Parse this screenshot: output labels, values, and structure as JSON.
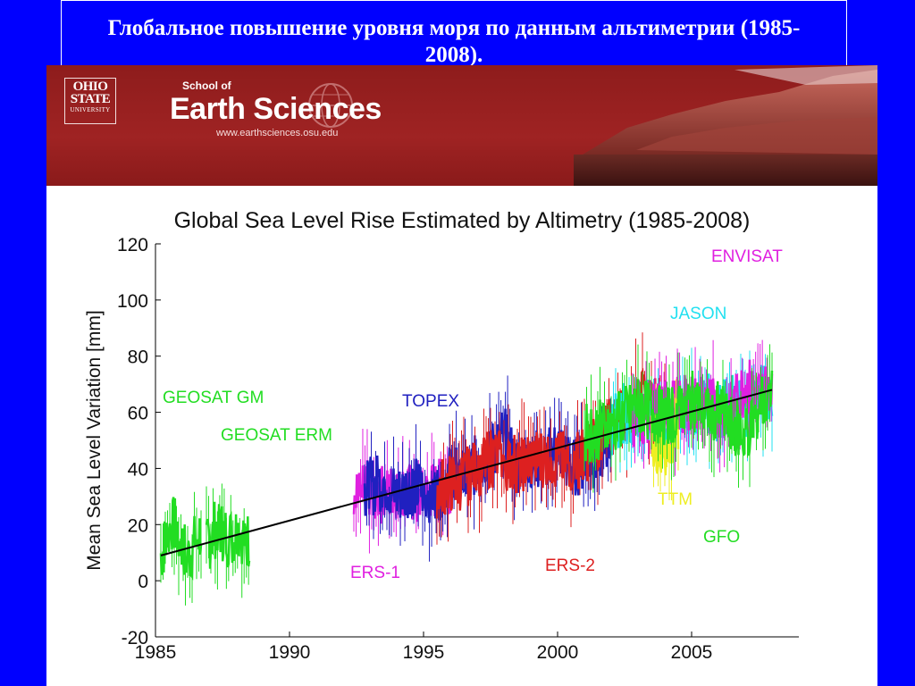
{
  "slide": {
    "title": "Глобальное повышение уровня моря по данным альтиметрии (1985-2008).",
    "background_color": "#0000ff"
  },
  "banner": {
    "logo_line1": "OHIO",
    "logo_line2": "STATE",
    "logo_line3": "UNIVERSITY",
    "school_of": "School of",
    "school_name": "Earth Sciences",
    "url": "www.earthsciences.osu.edu",
    "color": "#9a2020"
  },
  "chart_data": {
    "type": "line",
    "title": "Global Sea Level Rise Estimated by Altimetry (1985-2008)",
    "xlabel": "",
    "ylabel": "Mean Sea Level Variation [mm]",
    "xlim": [
      1985,
      2009
    ],
    "ylim": [
      -20,
      120
    ],
    "xticks": [
      1985,
      1990,
      1995,
      2000,
      2005
    ],
    "yticks": [
      -20,
      0,
      20,
      40,
      60,
      80,
      100,
      120
    ],
    "grid": false,
    "series": [
      {
        "name": "GEOSAT GM",
        "color": "#22dd22",
        "x": [
          1985.2,
          1985.7,
          1986.2,
          1986.7
        ],
        "y": [
          10,
          20,
          8,
          18
        ]
      },
      {
        "name": "GEOSAT ERM",
        "color": "#22dd22",
        "x": [
          1986.9,
          1987.3,
          1987.7,
          1988.1,
          1988.5
        ],
        "y": [
          12,
          20,
          15,
          18,
          14
        ]
      },
      {
        "name": "ERS-1",
        "color": "#e020e0",
        "x": [
          1992.4,
          1993,
          1993.6,
          1994.2,
          1994.8,
          1995.4,
          1996
        ],
        "y": [
          28,
          33,
          30,
          34,
          28,
          32,
          35
        ]
      },
      {
        "name": "TOPEX",
        "color": "#2020c0",
        "x": [
          1992.8,
          1993.5,
          1994,
          1994.5,
          1995,
          1995.5,
          1996,
          1996.5,
          1997,
          1997.5,
          1998,
          1998.5,
          1999,
          1999.5,
          2000,
          2000.5,
          2001,
          2001.5,
          2002
        ],
        "y": [
          32,
          36,
          30,
          34,
          32,
          31,
          38,
          36,
          42,
          46,
          52,
          40,
          44,
          42,
          48,
          40,
          42,
          44,
          52
        ]
      },
      {
        "name": "ERS-2",
        "color": "#dd2020",
        "x": [
          1995.5,
          1996.5,
          1997.5,
          1998.5,
          1999.5,
          2000.5,
          2001,
          2002,
          2003,
          2004
        ],
        "y": [
          33,
          36,
          44,
          42,
          44,
          42,
          45,
          55,
          65,
          62
        ]
      },
      {
        "name": "JASON",
        "color": "#22e0f0",
        "x": [
          2002,
          2002.5,
          2003,
          2003.5,
          2004,
          2004.5,
          2005,
          2005.5,
          2006,
          2006.5,
          2007,
          2007.5,
          2008
        ],
        "y": [
          55,
          60,
          58,
          62,
          56,
          60,
          62,
          64,
          60,
          63,
          62,
          66,
          68
        ]
      },
      {
        "name": "ENVISAT",
        "color": "#e020e0",
        "x": [
          2002.8,
          2003.5,
          2004.5,
          2005.5,
          2006.5,
          2007,
          2007.5,
          2008
        ],
        "y": [
          58,
          60,
          62,
          64,
          60,
          70,
          66,
          68
        ]
      },
      {
        "name": "TTM",
        "color": "#eeee22",
        "x": [
          2003.5,
          2004,
          2004.5
        ],
        "y": [
          50,
          48,
          55
        ]
      },
      {
        "name": "GFO",
        "color": "#22dd22",
        "x": [
          2001,
          2002,
          2003,
          2004,
          2005,
          2006,
          2007,
          2008
        ],
        "y": [
          52,
          55,
          62,
          58,
          64,
          60,
          52,
          70
        ]
      }
    ],
    "trend": {
      "x": [
        1985.2,
        2008
      ],
      "y": [
        9,
        68
      ],
      "color": "#000000"
    }
  }
}
